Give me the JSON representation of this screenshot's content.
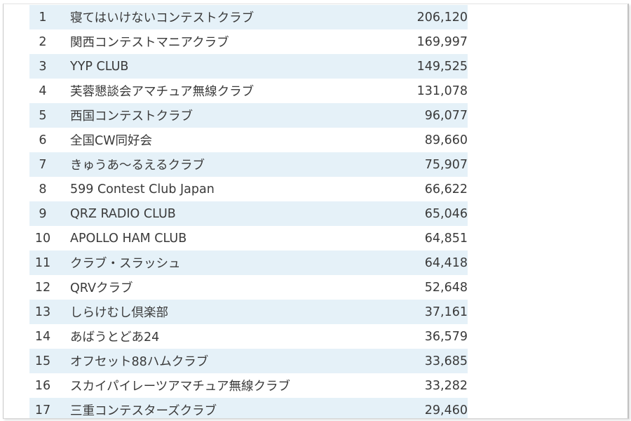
{
  "ranking": {
    "rows": [
      {
        "rank": "1",
        "name": "寝てはいけないコンテストクラブ",
        "score": "206,120"
      },
      {
        "rank": "2",
        "name": "関西コンテストマニアクラブ",
        "score": "169,997"
      },
      {
        "rank": "3",
        "name": "YYP CLUB",
        "score": "149,525"
      },
      {
        "rank": "4",
        "name": "芙蓉懇談会アマチュア無線クラブ",
        "score": "131,078"
      },
      {
        "rank": "5",
        "name": "西国コンテストクラブ",
        "score": "96,077"
      },
      {
        "rank": "6",
        "name": "全国CW同好会",
        "score": "89,660"
      },
      {
        "rank": "7",
        "name": "きゅうあ～るえるクラブ",
        "score": "75,907"
      },
      {
        "rank": "8",
        "name": "599 Contest Club Japan",
        "score": "66,622"
      },
      {
        "rank": "9",
        "name": "QRZ RADIO CLUB",
        "score": "65,046"
      },
      {
        "rank": "10",
        "name": "APOLLO HAM CLUB",
        "score": "64,851"
      },
      {
        "rank": "11",
        "name": "クラブ・スラッシュ",
        "score": "64,418"
      },
      {
        "rank": "12",
        "name": "QRVクラブ",
        "score": "52,648"
      },
      {
        "rank": "13",
        "name": "しらけむし倶楽部",
        "score": "37,161"
      },
      {
        "rank": "14",
        "name": "あばうとどあ24",
        "score": "36,579"
      },
      {
        "rank": "15",
        "name": "オフセット88ハムクラブ",
        "score": "33,685"
      },
      {
        "rank": "16",
        "name": "スカイパイレーツアマチュア無線クラブ",
        "score": "33,282"
      },
      {
        "rank": "17",
        "name": "三重コンテスターズクラブ",
        "score": "29,460"
      }
    ]
  },
  "colors": {
    "row_stripe": "#e5f1f8",
    "row_plain": "#ffffff",
    "text": "#3a3a3a"
  }
}
